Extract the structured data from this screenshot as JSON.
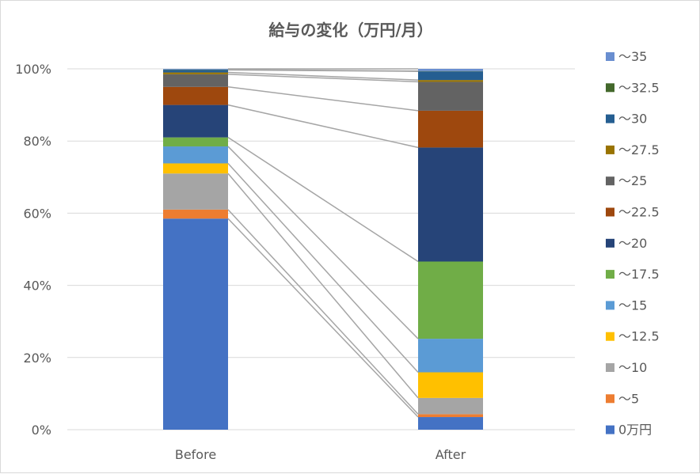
{
  "chart_data": {
    "type": "bar",
    "stacked": "percent",
    "title": "給与の変化（万円/月）",
    "categories": [
      "Before",
      "After"
    ],
    "ylim": [
      0,
      100
    ],
    "yticks": [
      "0%",
      "20%",
      "40%",
      "60%",
      "80%",
      "100%"
    ],
    "ytick_values": [
      0,
      20,
      40,
      60,
      80,
      100
    ],
    "grid": true,
    "legend_position": "right",
    "series_lines": true,
    "series": [
      {
        "name": "0万円",
        "color": "#4472C4",
        "values": [
          58.5,
          3.5
        ]
      },
      {
        "name": "～5",
        "color": "#ED7D31",
        "values": [
          2.5,
          0.8
        ]
      },
      {
        "name": "～10",
        "color": "#A5A5A5",
        "values": [
          10.0,
          4.5
        ]
      },
      {
        "name": "～12.5",
        "color": "#FFC000",
        "values": [
          2.8,
          7.1
        ]
      },
      {
        "name": "～15",
        "color": "#5B9BD5",
        "values": [
          4.7,
          9.3
        ]
      },
      {
        "name": "～17.5",
        "color": "#70AD47",
        "values": [
          2.5,
          21.4
        ]
      },
      {
        "name": "～20",
        "color": "#264478",
        "values": [
          9.0,
          31.6
        ]
      },
      {
        "name": "～22.5",
        "color": "#9E480E",
        "values": [
          5.0,
          10.2
        ]
      },
      {
        "name": "～25",
        "color": "#636363",
        "values": [
          3.5,
          8.0
        ]
      },
      {
        "name": "～27.5",
        "color": "#997300",
        "values": [
          0.5,
          0.5
        ]
      },
      {
        "name": "～30",
        "color": "#255E91",
        "values": [
          0.7,
          2.4
        ]
      },
      {
        "name": "～32.5",
        "color": "#43682B",
        "values": [
          0.1,
          0.1
        ]
      },
      {
        "name": "～35",
        "color": "#698ED0",
        "values": [
          0.2,
          0.6
        ]
      }
    ]
  }
}
